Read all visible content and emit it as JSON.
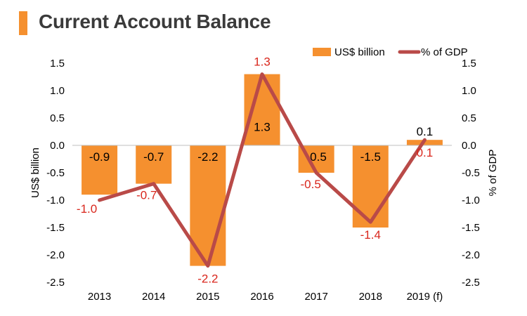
{
  "title": "Current Account Balance",
  "colors": {
    "accent": "#f5902f",
    "bar": "#f5902f",
    "line": "#b94a48",
    "line_label": "#d9261c"
  },
  "legend": {
    "bar": "US$ billion",
    "line": "% of GDP"
  },
  "chart_data": {
    "type": "bar+line",
    "title": "Current Account Balance",
    "categories": [
      "2013",
      "2014",
      "2015",
      "2016",
      "2017",
      "2018",
      "2019 (f)"
    ],
    "series": [
      {
        "name": "US$ billion",
        "type": "bar",
        "axis": "left",
        "values": [
          -0.9,
          -0.7,
          -2.2,
          1.3,
          -0.5,
          -1.5,
          0.1
        ],
        "labels": [
          "-0.9",
          "-0.7",
          "-2.2",
          "1.3",
          "-0.5",
          "-1.5",
          "0.1"
        ]
      },
      {
        "name": "% of GDP",
        "type": "line",
        "axis": "right",
        "values": [
          -1.0,
          -0.7,
          -2.2,
          1.3,
          -0.5,
          -1.4,
          0.1
        ],
        "labels": [
          "-1.0",
          "-0.7",
          "-2.2",
          "1.3",
          "-0.5",
          "-1.4",
          "0.1"
        ]
      }
    ],
    "ylabel": "US$ billion",
    "y2label": "% of GDP",
    "ylim": [
      -2.5,
      1.5
    ],
    "y2lim": [
      -2.5,
      1.5
    ],
    "yticks": [
      "1.5",
      "1.0",
      "0.5",
      "0.0",
      "-0.5",
      "-1.0",
      "-1.5",
      "-2.0",
      "-2.5"
    ],
    "y2ticks": [
      "1.5",
      "1.0",
      "0.5",
      "0.0",
      "-0.5",
      "-1.0",
      "-1.5",
      "-2.0",
      "-2.5"
    ],
    "legend_position": "top-right",
    "grid": false
  }
}
